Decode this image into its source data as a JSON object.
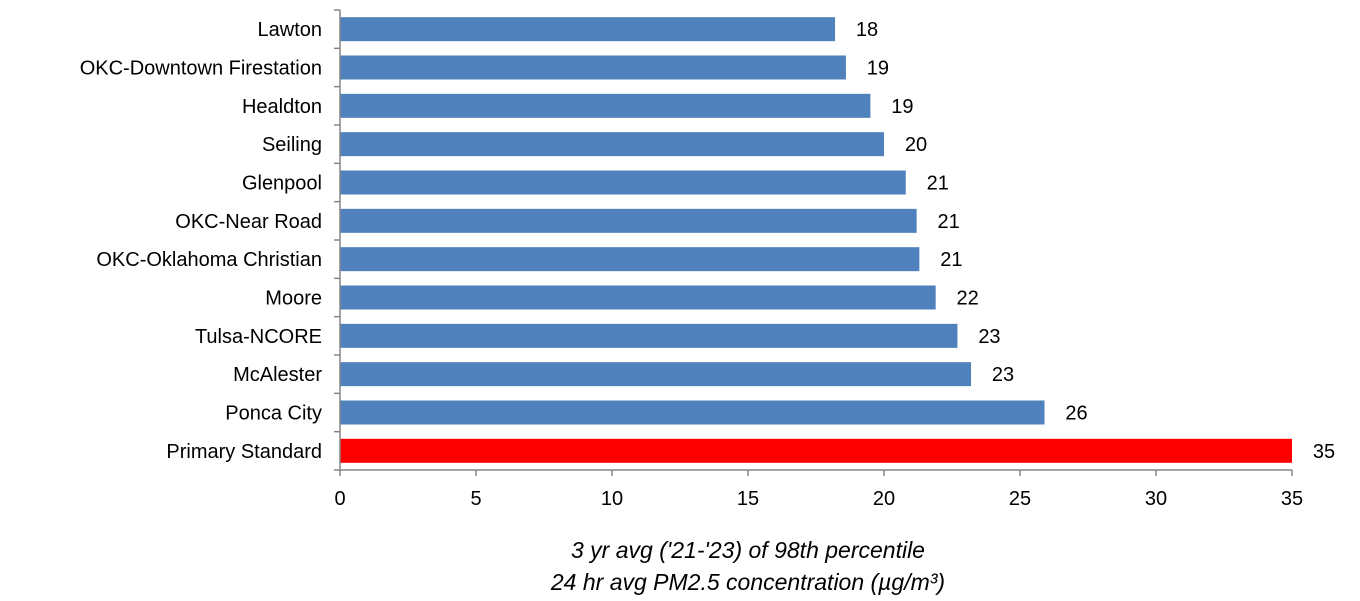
{
  "chart_data": {
    "type": "bar",
    "orientation": "horizontal",
    "categories": [
      "Lawton",
      "OKC-Downtown Firestation",
      "Healdton",
      "Seiling",
      "Glenpool",
      "OKC-Near Road",
      "OKC-Oklahoma Christian",
      "Moore",
      "Tulsa-NCORE",
      "McAlester",
      "Ponca City",
      "Primary Standard"
    ],
    "values": [
      18.2,
      18.6,
      19.5,
      20.0,
      20.8,
      21.2,
      21.3,
      21.9,
      22.7,
      23.2,
      25.9,
      35.0
    ],
    "data_labels": [
      "18",
      "19",
      "19",
      "20",
      "21",
      "21",
      "21",
      "22",
      "23",
      "23",
      "26",
      "35"
    ],
    "bar_colors": [
      "#4F81BD",
      "#4F81BD",
      "#4F81BD",
      "#4F81BD",
      "#4F81BD",
      "#4F81BD",
      "#4F81BD",
      "#4F81BD",
      "#4F81BD",
      "#4F81BD",
      "#4F81BD",
      "#FF0000"
    ],
    "xlim": [
      0,
      35
    ],
    "xticks": [
      0,
      5,
      10,
      15,
      20,
      25,
      30,
      35
    ],
    "xtick_labels": [
      "0",
      "5",
      "10",
      "15",
      "20",
      "25",
      "30",
      "35"
    ],
    "xlabel_line1": "3 yr avg ('21-'23) of 98th percentile",
    "xlabel_line2": "24 hr avg PM2.5 concentration (µg/m³)",
    "grid": false,
    "legend": "none"
  }
}
